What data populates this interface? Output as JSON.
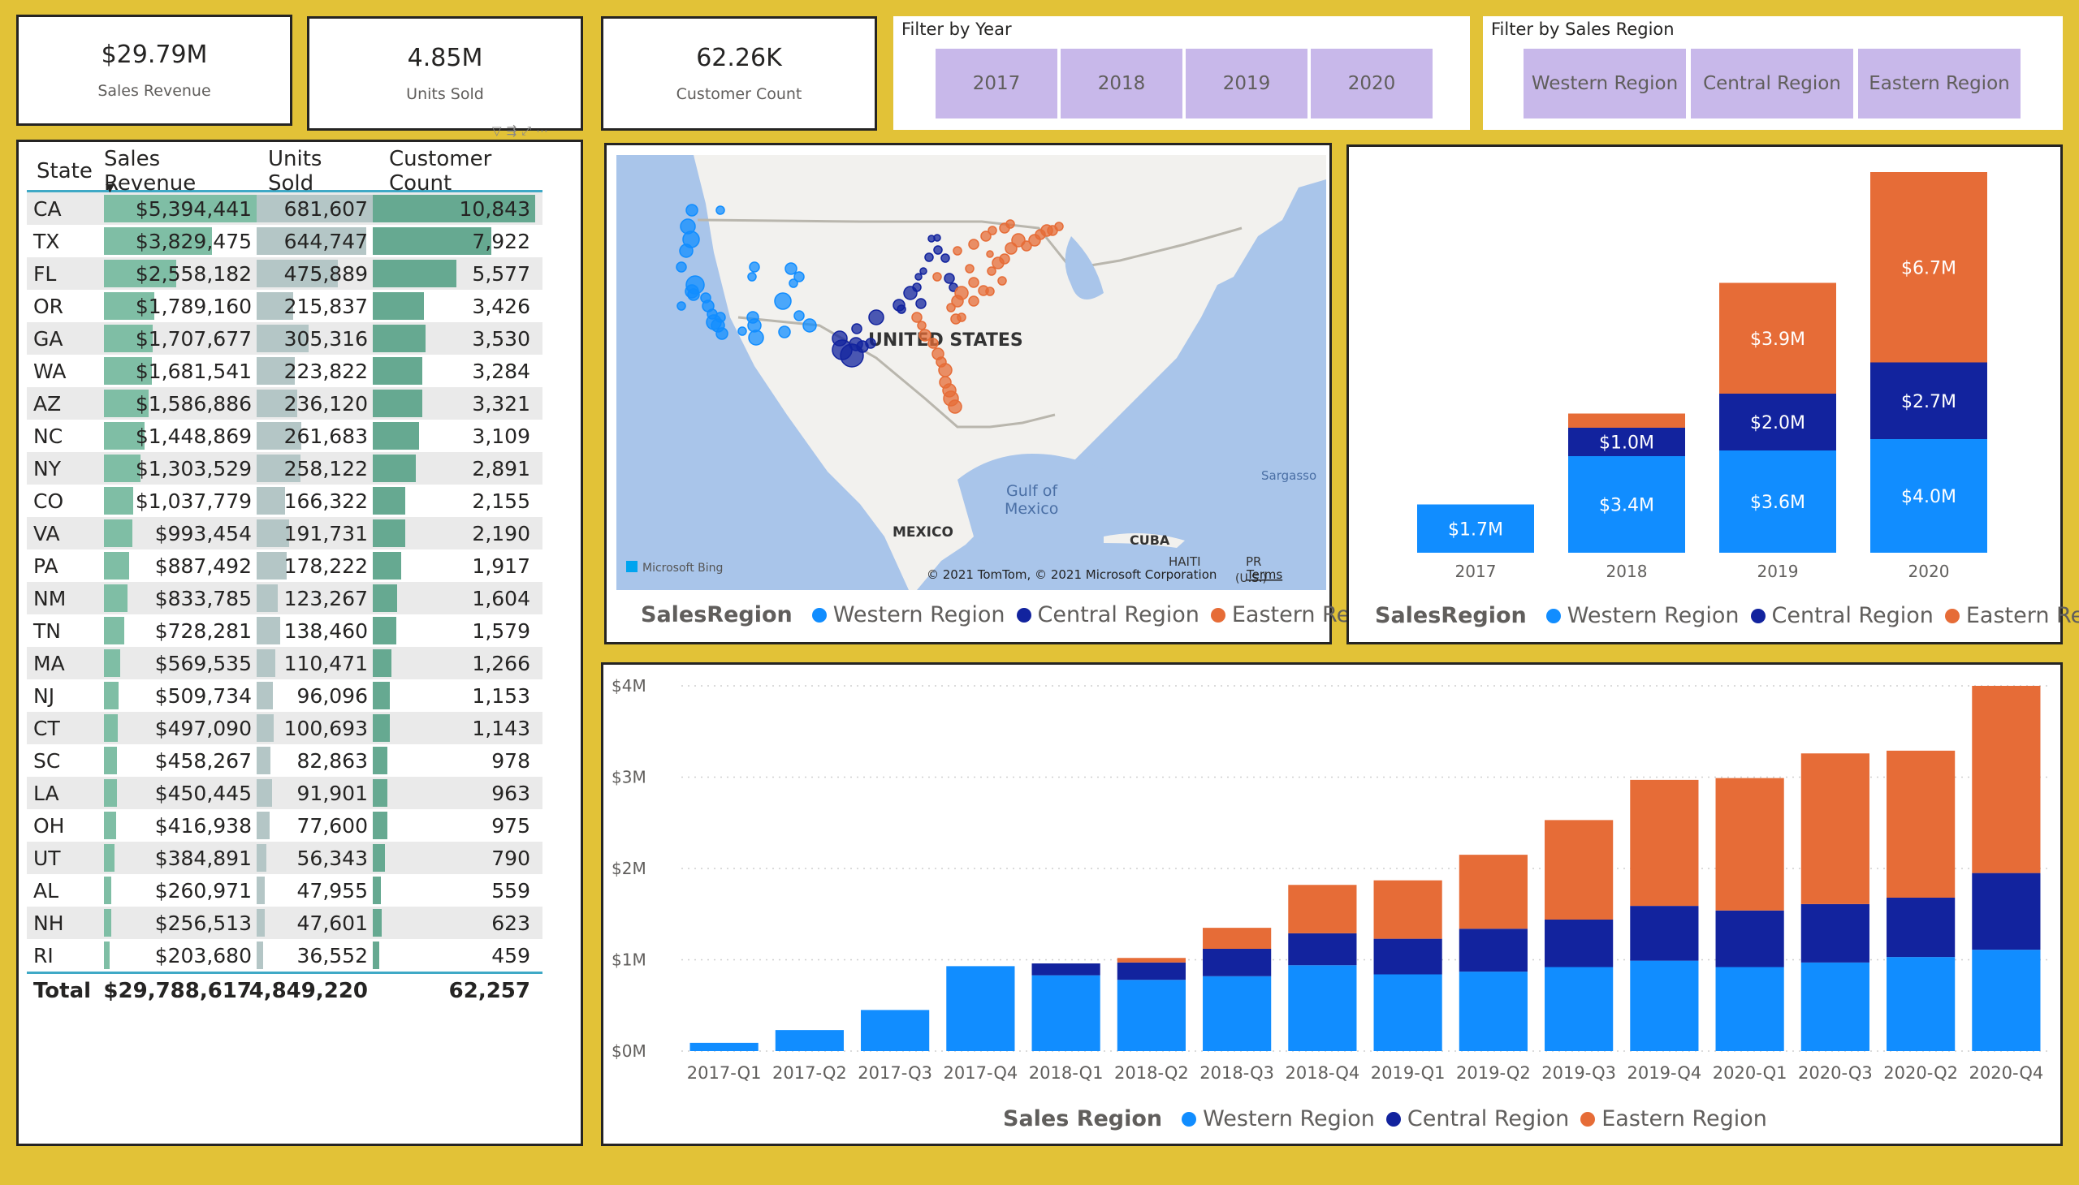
{
  "kpis": [
    {
      "value": "$29.79M",
      "label": "Sales Revenue"
    },
    {
      "value": "4.85M",
      "label": "Units Sold"
    },
    {
      "value": "62.26K",
      "label": "Customer Count"
    }
  ],
  "year_filter": {
    "title": "Filter by Year",
    "options": [
      "2017",
      "2018",
      "2019",
      "2020"
    ]
  },
  "region_filter": {
    "title": "Filter by Sales Region",
    "options": [
      "Western Region",
      "Central Region",
      "Eastern Region"
    ]
  },
  "table": {
    "headers": [
      "State",
      "Sales Revenue",
      "Units Sold",
      "Customer Count"
    ],
    "rows": [
      {
        "state": "CA",
        "rev": "$5,394,441",
        "units": "681,607",
        "cust": "10,843",
        "rv": 5394441,
        "uv": 681607,
        "cv": 10843
      },
      {
        "state": "TX",
        "rev": "$3,829,475",
        "units": "644,747",
        "cust": "7,922",
        "rv": 3829475,
        "uv": 644747,
        "cv": 7922
      },
      {
        "state": "FL",
        "rev": "$2,558,182",
        "units": "475,889",
        "cust": "5,577",
        "rv": 2558182,
        "uv": 475889,
        "cv": 5577
      },
      {
        "state": "OR",
        "rev": "$1,789,160",
        "units": "215,837",
        "cust": "3,426",
        "rv": 1789160,
        "uv": 215837,
        "cv": 3426
      },
      {
        "state": "GA",
        "rev": "$1,707,677",
        "units": "305,316",
        "cust": "3,530",
        "rv": 1707677,
        "uv": 305316,
        "cv": 3530
      },
      {
        "state": "WA",
        "rev": "$1,681,541",
        "units": "223,822",
        "cust": "3,284",
        "rv": 1681541,
        "uv": 223822,
        "cv": 3284
      },
      {
        "state": "AZ",
        "rev": "$1,586,886",
        "units": "236,120",
        "cust": "3,321",
        "rv": 1586886,
        "uv": 236120,
        "cv": 3321
      },
      {
        "state": "NC",
        "rev": "$1,448,869",
        "units": "261,683",
        "cust": "3,109",
        "rv": 1448869,
        "uv": 261683,
        "cv": 3109
      },
      {
        "state": "NY",
        "rev": "$1,303,529",
        "units": "258,122",
        "cust": "2,891",
        "rv": 1303529,
        "uv": 258122,
        "cv": 2891
      },
      {
        "state": "CO",
        "rev": "$1,037,779",
        "units": "166,322",
        "cust": "2,155",
        "rv": 1037779,
        "uv": 166322,
        "cv": 2155
      },
      {
        "state": "VA",
        "rev": "$993,454",
        "units": "191,731",
        "cust": "2,190",
        "rv": 993454,
        "uv": 191731,
        "cv": 2190
      },
      {
        "state": "PA",
        "rev": "$887,492",
        "units": "178,222",
        "cust": "1,917",
        "rv": 887492,
        "uv": 178222,
        "cv": 1917
      },
      {
        "state": "NM",
        "rev": "$833,785",
        "units": "123,267",
        "cust": "1,604",
        "rv": 833785,
        "uv": 123267,
        "cv": 1604
      },
      {
        "state": "TN",
        "rev": "$728,281",
        "units": "138,460",
        "cust": "1,579",
        "rv": 728281,
        "uv": 138460,
        "cv": 1579
      },
      {
        "state": "MA",
        "rev": "$569,535",
        "units": "110,471",
        "cust": "1,266",
        "rv": 569535,
        "uv": 110471,
        "cv": 1266
      },
      {
        "state": "NJ",
        "rev": "$509,734",
        "units": "96,096",
        "cust": "1,153",
        "rv": 509734,
        "uv": 96096,
        "cv": 1153
      },
      {
        "state": "CT",
        "rev": "$497,090",
        "units": "100,693",
        "cust": "1,143",
        "rv": 497090,
        "uv": 100693,
        "cv": 1143
      },
      {
        "state": "SC",
        "rev": "$458,267",
        "units": "82,863",
        "cust": "978",
        "rv": 458267,
        "uv": 82863,
        "cv": 978
      },
      {
        "state": "LA",
        "rev": "$450,445",
        "units": "91,901",
        "cust": "963",
        "rv": 450445,
        "uv": 91901,
        "cv": 963
      },
      {
        "state": "OH",
        "rev": "$416,938",
        "units": "77,600",
        "cust": "975",
        "rv": 416938,
        "uv": 77600,
        "cv": 975
      },
      {
        "state": "UT",
        "rev": "$384,891",
        "units": "56,343",
        "cust": "790",
        "rv": 384891,
        "uv": 56343,
        "cv": 790
      },
      {
        "state": "AL",
        "rev": "$260,971",
        "units": "47,955",
        "cust": "559",
        "rv": 260971,
        "uv": 47955,
        "cv": 559
      },
      {
        "state": "NH",
        "rev": "$256,513",
        "units": "47,601",
        "cust": "623",
        "rv": 256513,
        "uv": 47601,
        "cv": 623
      },
      {
        "state": "RI",
        "rev": "$203,680",
        "units": "36,552",
        "cust": "459",
        "rv": 203680,
        "uv": 36552,
        "cv": 459
      }
    ],
    "total": {
      "label": "Total",
      "rev": "$29,788,617",
      "units": "4,849,220",
      "cust": "62,257"
    }
  },
  "map": {
    "labels": {
      "us": "UNITED STATES",
      "mexico": "MEXICO",
      "gulf1": "Gulf of",
      "gulf2": "Mexico",
      "cuba": "CUBA",
      "haiti": "HAITI",
      "pr": "PR",
      "us2": "(U.S.)",
      "sargasso": "Sargasso"
    },
    "bing": "Microsoft Bing",
    "copyright": "© 2021 TomTom, © 2021 Microsoft Corporation",
    "terms": "Terms",
    "legend_title": "SalesRegion",
    "legend": [
      "Western Region",
      "Central Region",
      "Eastern Region"
    ]
  },
  "colors": {
    "western": "#118dff",
    "central": "#12239e",
    "eastern": "#e66c37",
    "frame": "#e2c237"
  },
  "icons": [
    "filter-icon",
    "drill-icon",
    "focus-mode-icon",
    "more-options-icon",
    "sort-desc-icon"
  ],
  "chart_data": [
    {
      "type": "bar",
      "stacked": true,
      "categories": [
        "2017",
        "2018",
        "2019",
        "2020"
      ],
      "series": [
        {
          "name": "Western Region",
          "values": [
            1.7,
            3.4,
            3.6,
            4.0
          ],
          "labels": [
            "$1.7M",
            "$3.4M",
            "$3.6M",
            "$4.0M"
          ]
        },
        {
          "name": "Central Region",
          "values": [
            0,
            1.0,
            2.0,
            2.7
          ],
          "labels": [
            "",
            "$1.0M",
            "$2.0M",
            "$2.7M"
          ]
        },
        {
          "name": "Eastern Region",
          "values": [
            0,
            0.5,
            3.9,
            6.7
          ],
          "labels": [
            "",
            "",
            "$3.9M",
            "$6.7M"
          ]
        }
      ],
      "legend_title": "SalesRegion",
      "legend_position": "bottom",
      "ylim": [
        0,
        14
      ]
    },
    {
      "type": "bar",
      "stacked": true,
      "categories": [
        "2017-Q1",
        "2017-Q2",
        "2017-Q3",
        "2017-Q4",
        "2018-Q1",
        "2018-Q2",
        "2018-Q3",
        "2018-Q4",
        "2019-Q1",
        "2019-Q2",
        "2019-Q3",
        "2019-Q4",
        "2020-Q1",
        "2020-Q3",
        "2020-Q2",
        "2020-Q4"
      ],
      "series": [
        {
          "name": "Western Region",
          "values": [
            0.09,
            0.23,
            0.45,
            0.93,
            0.83,
            0.78,
            0.82,
            0.94,
            0.84,
            0.87,
            0.92,
            0.99,
            0.92,
            0.97,
            1.03,
            1.11
          ]
        },
        {
          "name": "Central Region",
          "values": [
            0,
            0,
            0,
            0,
            0.13,
            0.19,
            0.3,
            0.35,
            0.39,
            0.47,
            0.52,
            0.6,
            0.62,
            0.64,
            0.65,
            0.84
          ]
        },
        {
          "name": "Eastern Region",
          "values": [
            0,
            0,
            0,
            0,
            0,
            0.05,
            0.23,
            0.53,
            0.64,
            0.81,
            1.09,
            1.38,
            1.45,
            1.65,
            1.61,
            2.05
          ]
        }
      ],
      "y_ticks": [
        "$0M",
        "$1M",
        "$2M",
        "$3M",
        "$4M"
      ],
      "ylim": [
        0,
        4
      ],
      "grid": true,
      "legend_title": "Sales Region",
      "legend_position": "bottom"
    }
  ]
}
